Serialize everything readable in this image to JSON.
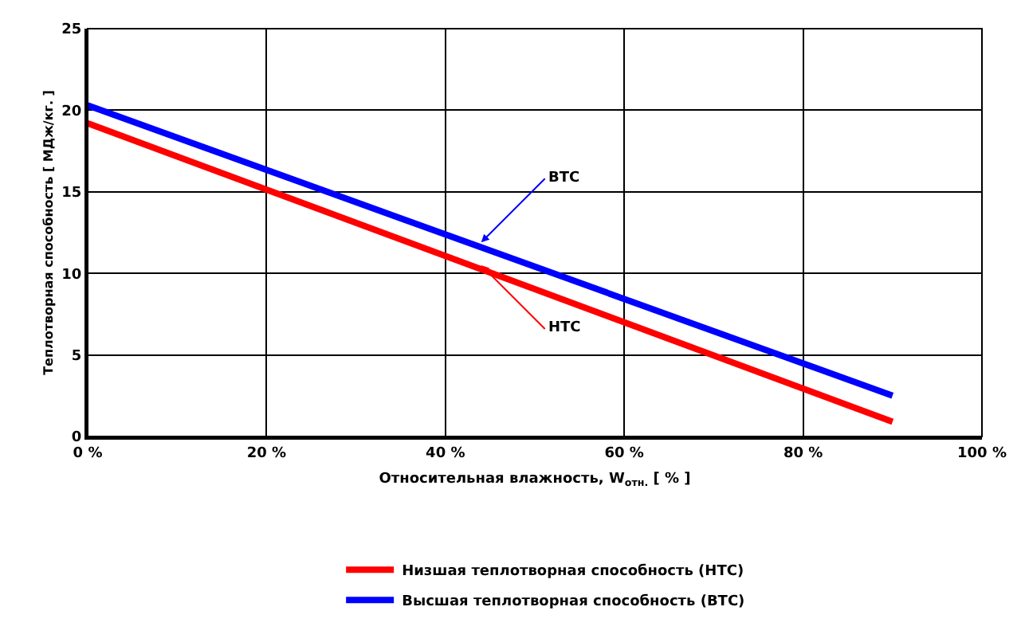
{
  "chart_data": {
    "type": "line",
    "xlabel": "Относительная влажность, W$_{отн.}$ [ % ]",
    "ylabel": "Теплотворная способность [ МДж/кг. ]",
    "x": [
      0,
      90
    ],
    "series": [
      {
        "name": "Низшая теплотворная способность (НТС)",
        "color": "#ff0000",
        "values": [
          19.2,
          0.9
        ]
      },
      {
        "name": "Высшая теплотворная способность (ВТС)",
        "color": "#0000ff",
        "values": [
          20.3,
          2.5
        ]
      }
    ],
    "xlim": [
      0,
      100
    ],
    "xticks": [
      {
        "value": 0,
        "label": "0 %"
      },
      {
        "value": 20,
        "label": "20 %"
      },
      {
        "value": 40,
        "label": "40 %"
      },
      {
        "value": 60,
        "label": "60 %"
      },
      {
        "value": 80,
        "label": "80 %"
      },
      {
        "value": 100,
        "label": "100 %"
      }
    ],
    "ylim": [
      0,
      25
    ],
    "yticks": [
      0,
      5,
      10,
      15,
      20,
      25
    ],
    "annotations": [
      {
        "text": "ВТС",
        "x": 44,
        "y": 11.9
      },
      {
        "text": "НТС",
        "x": 44,
        "y": 10.5
      }
    ],
    "grid": true,
    "legend": "bottom",
    "marker": "none",
    "line_style": "solid"
  }
}
